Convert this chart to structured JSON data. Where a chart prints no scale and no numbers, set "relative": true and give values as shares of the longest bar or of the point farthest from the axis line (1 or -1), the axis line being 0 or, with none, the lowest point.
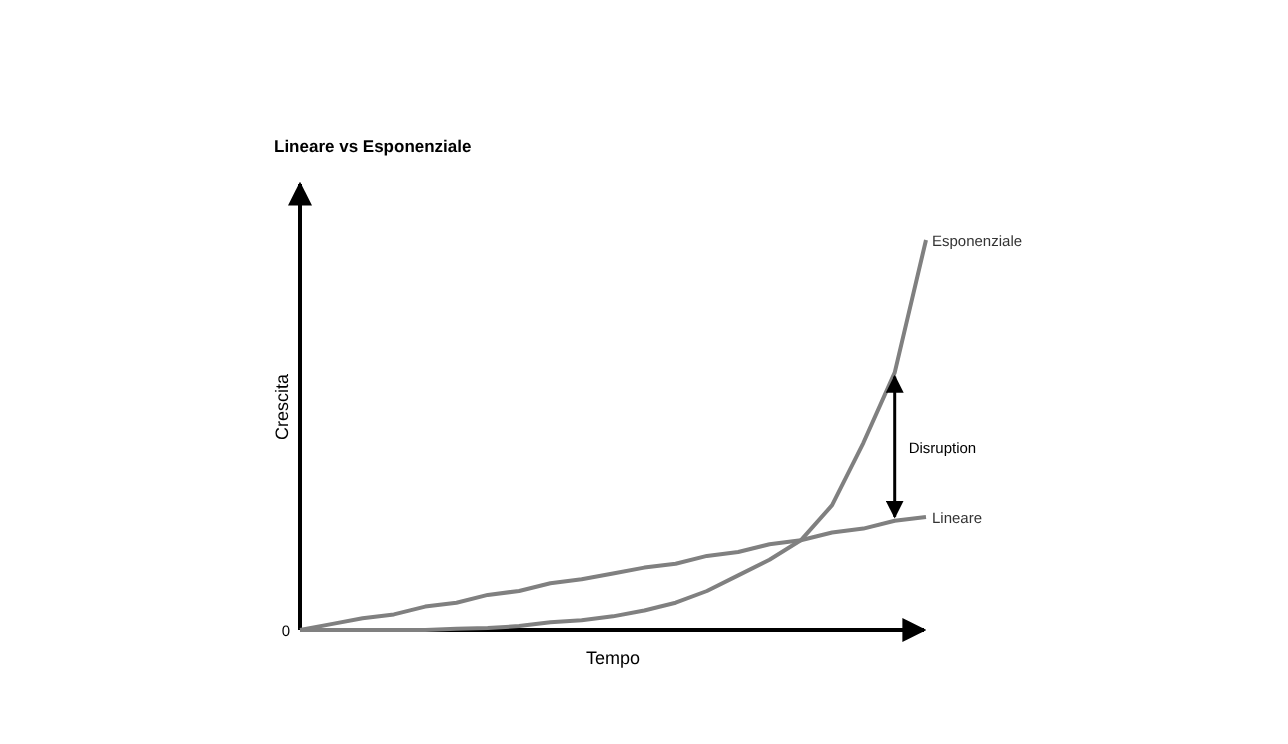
{
  "chart_data": {
    "type": "line",
    "title": "Lineare vs Esponenziale",
    "xlabel": "Tempo",
    "ylabel": "Crescita",
    "relative": true,
    "line_style": "solid",
    "marker": "none",
    "categories": [
      null,
      null,
      null,
      null,
      null,
      null,
      null,
      null,
      null,
      null,
      null,
      null,
      null,
      null,
      null,
      null,
      null,
      null,
      null,
      null,
      null
    ],
    "series": [
      {
        "name": "Esponenziale",
        "color": "#808080",
        "values": [
          0,
          0,
          0,
          0,
          0,
          0.003,
          0.005,
          0.01,
          0.02,
          0.025,
          0.035,
          0.05,
          0.07,
          0.1,
          0.14,
          0.18,
          0.23,
          0.32,
          0.48,
          0.66,
          1
        ]
      },
      {
        "name": "Lineare",
        "color": "#808080",
        "values": [
          0,
          0.015,
          0.03,
          0.04,
          0.06,
          0.07,
          0.09,
          0.1,
          0.12,
          0.13,
          0.145,
          0.16,
          0.17,
          0.19,
          0.2,
          0.22,
          0.23,
          0.25,
          0.26,
          0.28,
          0.29
        ]
      }
    ],
    "annotations": [
      "0",
      "Disruption"
    ]
  }
}
